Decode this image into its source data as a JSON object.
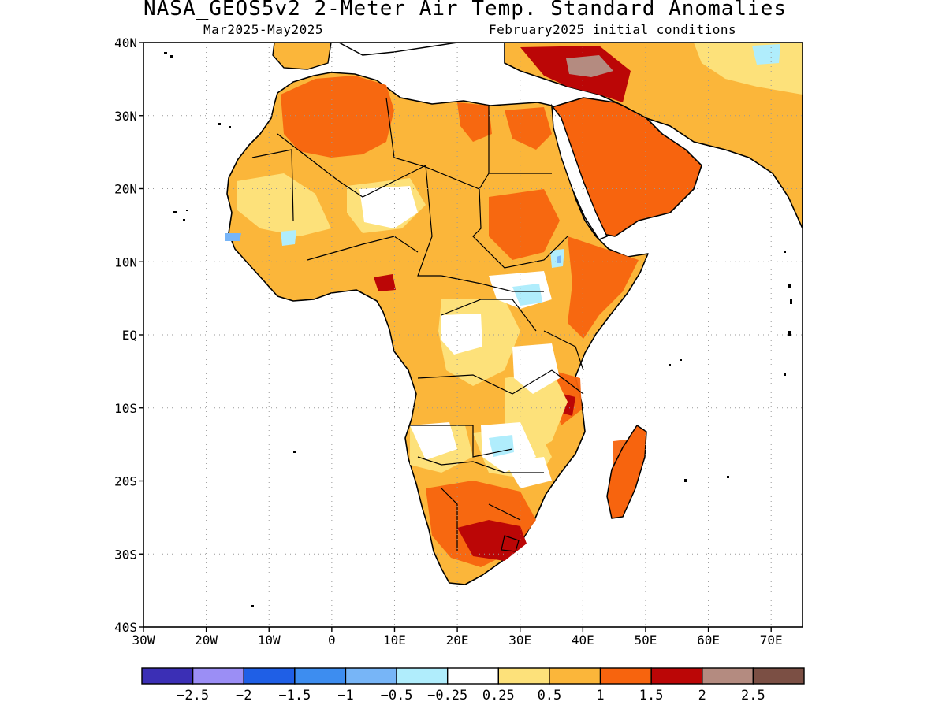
{
  "title": "NASA_GEOS5v2 2-Meter Air Temp. Standard Anomalies",
  "subtitle_left": "Mar2025-May2025",
  "subtitle_right": "February2025 initial conditions",
  "map": {
    "lon_range": [
      -30,
      75
    ],
    "lat_range": [
      -40,
      40
    ],
    "lat_labels": [
      {
        "lat": 40,
        "label": "40N"
      },
      {
        "lat": 30,
        "label": "30N"
      },
      {
        "lat": 20,
        "label": "20N"
      },
      {
        "lat": 10,
        "label": "10N"
      },
      {
        "lat": 0,
        "label": "EQ"
      },
      {
        "lat": -10,
        "label": "10S"
      },
      {
        "lat": -20,
        "label": "20S"
      },
      {
        "lat": -30,
        "label": "30S"
      },
      {
        "lat": -40,
        "label": "40S"
      }
    ],
    "lon_labels": [
      {
        "lon": -30,
        "label": "30W"
      },
      {
        "lon": -20,
        "label": "20W"
      },
      {
        "lon": -10,
        "label": "10W"
      },
      {
        "lon": 0,
        "label": "0"
      },
      {
        "lon": 10,
        "label": "10E"
      },
      {
        "lon": 20,
        "label": "20E"
      },
      {
        "lon": 30,
        "label": "30E"
      },
      {
        "lon": 40,
        "label": "40E"
      },
      {
        "lon": 50,
        "label": "50E"
      },
      {
        "lon": 60,
        "label": "60E"
      },
      {
        "lon": 70,
        "label": "70E"
      }
    ]
  },
  "colorbar": {
    "colors": [
      "#3b2fb5",
      "#9b8ef5",
      "#1f5fe6",
      "#3d8df0",
      "#77b5f7",
      "#b0edfc",
      "#ffffff",
      "#fde17a",
      "#fbb63a",
      "#f7640e",
      "#bb0606",
      "#b48b80",
      "#7b4f44"
    ],
    "labels": [
      "-2.5",
      "-2",
      "-1.5",
      "-1",
      "-0.5",
      "-0.25",
      "0.25",
      "0.5",
      "1",
      "1.5",
      "2",
      "2.5"
    ]
  }
}
